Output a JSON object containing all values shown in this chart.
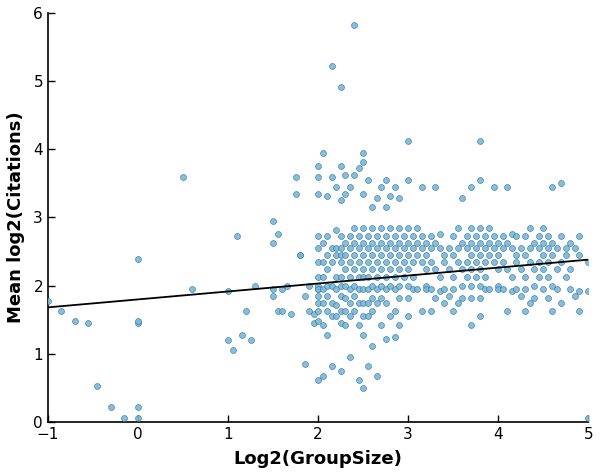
{
  "title": "",
  "xlabel": "Log2(GroupSize)",
  "ylabel": "Mean log2(Citations)",
  "xlim": [
    -1,
    5
  ],
  "ylim": [
    0,
    6
  ],
  "xticks": [
    -1,
    0,
    1,
    2,
    3,
    4,
    5
  ],
  "yticks": [
    0,
    1,
    2,
    3,
    4,
    5,
    6
  ],
  "scatter_color": "#7ab8d4",
  "scatter_edgecolor": "#3a7aa8",
  "scatter_alpha": 0.9,
  "scatter_size": 18,
  "line_color": "#000000",
  "line_width": 1.3,
  "regression_x0": -1,
  "regression_x1": 5,
  "regression_y0": 1.68,
  "regression_y1": 2.38,
  "background_color": "#ffffff",
  "points": [
    [
      -1.0,
      1.78
    ],
    [
      -0.85,
      1.62
    ],
    [
      -0.7,
      1.48
    ],
    [
      -0.55,
      1.45
    ],
    [
      -0.45,
      0.53
    ],
    [
      -0.3,
      0.22
    ],
    [
      -0.15,
      0.06
    ],
    [
      0.0,
      2.39
    ],
    [
      0.0,
      1.45
    ],
    [
      0.0,
      1.48
    ],
    [
      0.0,
      0.22
    ],
    [
      0.0,
      0.06
    ],
    [
      0.5,
      3.6
    ],
    [
      0.6,
      1.95
    ],
    [
      1.0,
      1.92
    ],
    [
      1.0,
      1.2
    ],
    [
      1.05,
      1.05
    ],
    [
      1.1,
      2.72
    ],
    [
      1.15,
      1.28
    ],
    [
      1.2,
      1.62
    ],
    [
      1.25,
      1.2
    ],
    [
      1.3,
      2.0
    ],
    [
      1.5,
      1.95
    ],
    [
      1.5,
      2.62
    ],
    [
      1.5,
      1.85
    ],
    [
      1.5,
      2.95
    ],
    [
      1.55,
      2.75
    ],
    [
      1.55,
      1.62
    ],
    [
      1.6,
      1.95
    ],
    [
      1.6,
      1.62
    ],
    [
      1.65,
      2.0
    ],
    [
      1.7,
      1.58
    ],
    [
      1.75,
      3.6
    ],
    [
      1.75,
      3.35
    ],
    [
      1.8,
      2.45
    ],
    [
      1.8,
      2.45
    ],
    [
      1.85,
      1.85
    ],
    [
      1.85,
      0.85
    ],
    [
      1.9,
      1.62
    ],
    [
      1.9,
      2.0
    ],
    [
      1.95,
      1.45
    ],
    [
      1.95,
      1.58
    ],
    [
      2.0,
      1.95
    ],
    [
      2.0,
      3.75
    ],
    [
      2.0,
      2.72
    ],
    [
      2.0,
      2.55
    ],
    [
      2.0,
      2.35
    ],
    [
      2.0,
      2.12
    ],
    [
      2.0,
      2.0
    ],
    [
      2.0,
      1.95
    ],
    [
      2.0,
      1.85
    ],
    [
      2.0,
      1.75
    ],
    [
      2.0,
      1.62
    ],
    [
      2.0,
      1.48
    ],
    [
      2.0,
      3.6
    ],
    [
      2.0,
      3.35
    ],
    [
      2.0,
      0.62
    ],
    [
      2.05,
      2.62
    ],
    [
      2.05,
      2.35
    ],
    [
      2.05,
      2.12
    ],
    [
      2.05,
      1.95
    ],
    [
      2.05,
      1.75
    ],
    [
      2.05,
      3.95
    ],
    [
      2.05,
      0.68
    ],
    [
      2.05,
      1.42
    ],
    [
      2.1,
      2.45
    ],
    [
      2.1,
      2.25
    ],
    [
      2.1,
      2.0
    ],
    [
      2.1,
      1.85
    ],
    [
      2.1,
      1.62
    ],
    [
      2.1,
      3.32
    ],
    [
      2.1,
      1.28
    ],
    [
      2.1,
      2.72
    ],
    [
      2.15,
      2.55
    ],
    [
      2.15,
      2.35
    ],
    [
      2.15,
      2.0
    ],
    [
      2.15,
      1.75
    ],
    [
      2.15,
      1.55
    ],
    [
      2.15,
      3.6
    ],
    [
      2.15,
      0.82
    ],
    [
      2.15,
      5.22
    ],
    [
      2.2,
      2.55
    ],
    [
      2.2,
      2.45
    ],
    [
      2.2,
      2.12
    ],
    [
      2.2,
      1.95
    ],
    [
      2.2,
      1.72
    ],
    [
      2.2,
      1.55
    ],
    [
      2.2,
      3.45
    ],
    [
      2.2,
      2.82
    ],
    [
      2.25,
      2.72
    ],
    [
      2.25,
      2.55
    ],
    [
      2.25,
      2.35
    ],
    [
      2.25,
      2.12
    ],
    [
      2.25,
      2.0
    ],
    [
      2.25,
      1.85
    ],
    [
      2.25,
      1.62
    ],
    [
      2.25,
      1.45
    ],
    [
      2.25,
      3.25
    ],
    [
      2.25,
      3.75
    ],
    [
      2.25,
      4.92
    ],
    [
      2.25,
      0.75
    ],
    [
      2.25,
      2.45
    ],
    [
      2.3,
      2.62
    ],
    [
      2.3,
      2.45
    ],
    [
      2.3,
      2.25
    ],
    [
      2.3,
      2.0
    ],
    [
      2.3,
      1.82
    ],
    [
      2.3,
      1.62
    ],
    [
      2.3,
      3.35
    ],
    [
      2.3,
      3.62
    ],
    [
      2.3,
      1.42
    ],
    [
      2.35,
      2.72
    ],
    [
      2.35,
      2.55
    ],
    [
      2.35,
      2.35
    ],
    [
      2.35,
      2.12
    ],
    [
      2.35,
      1.95
    ],
    [
      2.35,
      1.75
    ],
    [
      2.35,
      1.55
    ],
    [
      2.35,
      3.45
    ],
    [
      2.35,
      0.95
    ],
    [
      2.4,
      2.85
    ],
    [
      2.4,
      2.62
    ],
    [
      2.4,
      2.45
    ],
    [
      2.4,
      2.25
    ],
    [
      2.4,
      2.0
    ],
    [
      2.4,
      1.85
    ],
    [
      2.4,
      1.62
    ],
    [
      2.4,
      3.62
    ],
    [
      2.4,
      5.82
    ],
    [
      2.45,
      2.72
    ],
    [
      2.45,
      2.55
    ],
    [
      2.45,
      2.35
    ],
    [
      2.45,
      2.12
    ],
    [
      2.45,
      1.95
    ],
    [
      2.45,
      1.75
    ],
    [
      2.45,
      3.72
    ],
    [
      2.45,
      0.62
    ],
    [
      2.45,
      1.42
    ],
    [
      2.5,
      2.85
    ],
    [
      2.5,
      2.62
    ],
    [
      2.5,
      2.45
    ],
    [
      2.5,
      2.25
    ],
    [
      2.5,
      2.12
    ],
    [
      2.5,
      1.95
    ],
    [
      2.5,
      1.75
    ],
    [
      2.5,
      1.55
    ],
    [
      2.5,
      3.35
    ],
    [
      2.5,
      3.82
    ],
    [
      2.5,
      0.5
    ],
    [
      2.5,
      3.95
    ],
    [
      2.5,
      1.28
    ],
    [
      2.55,
      2.72
    ],
    [
      2.55,
      2.55
    ],
    [
      2.55,
      2.35
    ],
    [
      2.55,
      2.12
    ],
    [
      2.55,
      1.95
    ],
    [
      2.55,
      1.75
    ],
    [
      2.55,
      1.55
    ],
    [
      2.55,
      3.55
    ],
    [
      2.55,
      0.82
    ],
    [
      2.6,
      2.85
    ],
    [
      2.6,
      2.62
    ],
    [
      2.6,
      2.45
    ],
    [
      2.6,
      2.25
    ],
    [
      2.6,
      2.0
    ],
    [
      2.6,
      1.82
    ],
    [
      2.6,
      1.62
    ],
    [
      2.6,
      3.15
    ],
    [
      2.6,
      1.12
    ],
    [
      2.65,
      2.72
    ],
    [
      2.65,
      2.55
    ],
    [
      2.65,
      2.35
    ],
    [
      2.65,
      2.12
    ],
    [
      2.65,
      1.95
    ],
    [
      2.65,
      1.75
    ],
    [
      2.65,
      3.28
    ],
    [
      2.65,
      0.68
    ],
    [
      2.7,
      2.85
    ],
    [
      2.7,
      2.62
    ],
    [
      2.7,
      2.45
    ],
    [
      2.7,
      2.25
    ],
    [
      2.7,
      2.0
    ],
    [
      2.7,
      1.82
    ],
    [
      2.7,
      3.45
    ],
    [
      2.7,
      1.42
    ],
    [
      2.75,
      2.72
    ],
    [
      2.75,
      2.55
    ],
    [
      2.75,
      2.35
    ],
    [
      2.75,
      2.12
    ],
    [
      2.75,
      1.95
    ],
    [
      2.75,
      1.75
    ],
    [
      2.75,
      3.15
    ],
    [
      2.75,
      3.55
    ],
    [
      2.75,
      1.22
    ],
    [
      2.8,
      2.85
    ],
    [
      2.8,
      2.62
    ],
    [
      2.8,
      2.45
    ],
    [
      2.8,
      2.25
    ],
    [
      2.8,
      2.0
    ],
    [
      2.8,
      3.32
    ],
    [
      2.8,
      1.55
    ],
    [
      2.85,
      2.72
    ],
    [
      2.85,
      2.55
    ],
    [
      2.85,
      2.35
    ],
    [
      2.85,
      2.12
    ],
    [
      2.85,
      1.95
    ],
    [
      2.85,
      3.45
    ],
    [
      2.85,
      1.62
    ],
    [
      2.85,
      1.25
    ],
    [
      2.9,
      2.85
    ],
    [
      2.9,
      2.62
    ],
    [
      2.9,
      2.45
    ],
    [
      2.9,
      2.25
    ],
    [
      2.9,
      2.0
    ],
    [
      2.9,
      1.82
    ],
    [
      2.9,
      3.28
    ],
    [
      2.9,
      1.42
    ],
    [
      2.95,
      2.72
    ],
    [
      2.95,
      2.55
    ],
    [
      2.95,
      2.35
    ],
    [
      2.95,
      2.12
    ],
    [
      3.0,
      2.85
    ],
    [
      3.0,
      2.62
    ],
    [
      3.0,
      2.45
    ],
    [
      3.0,
      2.25
    ],
    [
      3.0,
      2.0
    ],
    [
      3.0,
      1.82
    ],
    [
      3.0,
      4.12
    ],
    [
      3.0,
      3.55
    ],
    [
      3.0,
      1.55
    ],
    [
      3.05,
      2.72
    ],
    [
      3.05,
      2.55
    ],
    [
      3.05,
      2.35
    ],
    [
      3.05,
      2.12
    ],
    [
      3.05,
      1.95
    ],
    [
      3.1,
      2.85
    ],
    [
      3.1,
      2.62
    ],
    [
      3.1,
      2.45
    ],
    [
      3.1,
      1.95
    ],
    [
      3.15,
      2.72
    ],
    [
      3.15,
      2.55
    ],
    [
      3.15,
      2.35
    ],
    [
      3.15,
      3.45
    ],
    [
      3.15,
      1.62
    ],
    [
      3.2,
      2.62
    ],
    [
      3.2,
      2.45
    ],
    [
      3.2,
      2.25
    ],
    [
      3.2,
      2.0
    ],
    [
      3.2,
      1.95
    ],
    [
      3.25,
      2.72
    ],
    [
      3.25,
      2.35
    ],
    [
      3.25,
      2.55
    ],
    [
      3.25,
      1.95
    ],
    [
      3.25,
      1.62
    ],
    [
      3.3,
      2.62
    ],
    [
      3.3,
      2.25
    ],
    [
      3.3,
      3.45
    ],
    [
      3.3,
      1.82
    ],
    [
      3.35,
      2.55
    ],
    [
      3.35,
      2.12
    ],
    [
      3.35,
      1.92
    ],
    [
      3.35,
      2.75
    ],
    [
      3.4,
      2.35
    ],
    [
      3.4,
      1.95
    ],
    [
      3.4,
      2.45
    ],
    [
      3.4,
      1.75
    ],
    [
      3.45,
      2.55
    ],
    [
      3.45,
      1.85
    ],
    [
      3.45,
      2.25
    ],
    [
      3.5,
      2.72
    ],
    [
      3.5,
      2.45
    ],
    [
      3.5,
      2.12
    ],
    [
      3.5,
      1.95
    ],
    [
      3.5,
      1.62
    ],
    [
      3.55,
      2.55
    ],
    [
      3.55,
      2.35
    ],
    [
      3.55,
      1.75
    ],
    [
      3.55,
      2.85
    ],
    [
      3.6,
      2.62
    ],
    [
      3.6,
      2.25
    ],
    [
      3.6,
      2.0
    ],
    [
      3.6,
      1.82
    ],
    [
      3.6,
      3.28
    ],
    [
      3.65,
      2.72
    ],
    [
      3.65,
      2.55
    ],
    [
      3.65,
      2.35
    ],
    [
      3.65,
      2.12
    ],
    [
      3.7,
      2.85
    ],
    [
      3.7,
      2.62
    ],
    [
      3.7,
      2.45
    ],
    [
      3.7,
      2.25
    ],
    [
      3.7,
      2.0
    ],
    [
      3.7,
      1.82
    ],
    [
      3.7,
      3.45
    ],
    [
      3.7,
      1.42
    ],
    [
      3.75,
      2.72
    ],
    [
      3.75,
      2.55
    ],
    [
      3.75,
      2.35
    ],
    [
      3.75,
      2.12
    ],
    [
      3.8,
      2.85
    ],
    [
      3.8,
      2.62
    ],
    [
      3.8,
      2.45
    ],
    [
      3.8,
      2.25
    ],
    [
      3.8,
      2.0
    ],
    [
      3.8,
      1.82
    ],
    [
      3.8,
      4.12
    ],
    [
      3.8,
      3.55
    ],
    [
      3.8,
      1.55
    ],
    [
      3.85,
      2.72
    ],
    [
      3.85,
      2.55
    ],
    [
      3.85,
      2.35
    ],
    [
      3.85,
      2.12
    ],
    [
      3.85,
      1.95
    ],
    [
      3.9,
      2.85
    ],
    [
      3.9,
      2.62
    ],
    [
      3.9,
      2.45
    ],
    [
      3.9,
      1.95
    ],
    [
      3.95,
      2.72
    ],
    [
      3.95,
      2.55
    ],
    [
      3.95,
      2.35
    ],
    [
      3.95,
      3.45
    ],
    [
      4.0,
      2.62
    ],
    [
      4.0,
      2.45
    ],
    [
      4.0,
      2.25
    ],
    [
      4.0,
      2.0
    ],
    [
      4.0,
      1.95
    ],
    [
      4.05,
      2.72
    ],
    [
      4.05,
      2.35
    ],
    [
      4.05,
      2.55
    ],
    [
      4.05,
      1.95
    ],
    [
      4.1,
      2.62
    ],
    [
      4.1,
      2.25
    ],
    [
      4.1,
      3.45
    ],
    [
      4.1,
      1.62
    ],
    [
      4.15,
      2.55
    ],
    [
      4.15,
      2.12
    ],
    [
      4.15,
      1.92
    ],
    [
      4.15,
      2.75
    ],
    [
      4.2,
      2.35
    ],
    [
      4.2,
      1.95
    ],
    [
      4.2,
      2.45
    ],
    [
      4.2,
      2.72
    ],
    [
      4.25,
      2.55
    ],
    [
      4.25,
      1.85
    ],
    [
      4.25,
      2.25
    ],
    [
      4.3,
      2.72
    ],
    [
      4.3,
      2.45
    ],
    [
      4.3,
      2.12
    ],
    [
      4.3,
      1.95
    ],
    [
      4.3,
      1.62
    ],
    [
      4.35,
      2.55
    ],
    [
      4.35,
      2.35
    ],
    [
      4.35,
      1.75
    ],
    [
      4.35,
      2.85
    ],
    [
      4.4,
      2.62
    ],
    [
      4.4,
      2.25
    ],
    [
      4.4,
      2.0
    ],
    [
      4.4,
      1.82
    ],
    [
      4.45,
      2.72
    ],
    [
      4.45,
      2.55
    ],
    [
      4.45,
      2.35
    ],
    [
      4.45,
      2.12
    ],
    [
      4.5,
      2.85
    ],
    [
      4.5,
      2.62
    ],
    [
      4.5,
      2.45
    ],
    [
      4.5,
      2.25
    ],
    [
      4.5,
      1.95
    ],
    [
      4.55,
      2.72
    ],
    [
      4.55,
      2.55
    ],
    [
      4.55,
      2.35
    ],
    [
      4.55,
      2.12
    ],
    [
      4.55,
      1.82
    ],
    [
      4.6,
      2.62
    ],
    [
      4.6,
      2.45
    ],
    [
      4.6,
      2.0
    ],
    [
      4.6,
      3.45
    ],
    [
      4.6,
      1.62
    ],
    [
      4.65,
      2.55
    ],
    [
      4.65,
      2.25
    ],
    [
      4.65,
      1.95
    ],
    [
      4.7,
      2.72
    ],
    [
      4.7,
      2.35
    ],
    [
      4.7,
      1.75
    ],
    [
      4.7,
      3.5
    ],
    [
      4.75,
      2.55
    ],
    [
      4.75,
      2.12
    ],
    [
      4.75,
      2.45
    ],
    [
      4.8,
      2.62
    ],
    [
      4.8,
      1.95
    ],
    [
      4.8,
      2.25
    ],
    [
      4.85,
      2.55
    ],
    [
      4.85,
      1.85
    ],
    [
      4.9,
      2.72
    ],
    [
      4.9,
      2.45
    ],
    [
      4.9,
      1.62
    ],
    [
      4.9,
      1.92
    ],
    [
      5.0,
      1.92
    ],
    [
      5.0,
      0.05
    ],
    [
      5.0,
      2.35
    ]
  ]
}
